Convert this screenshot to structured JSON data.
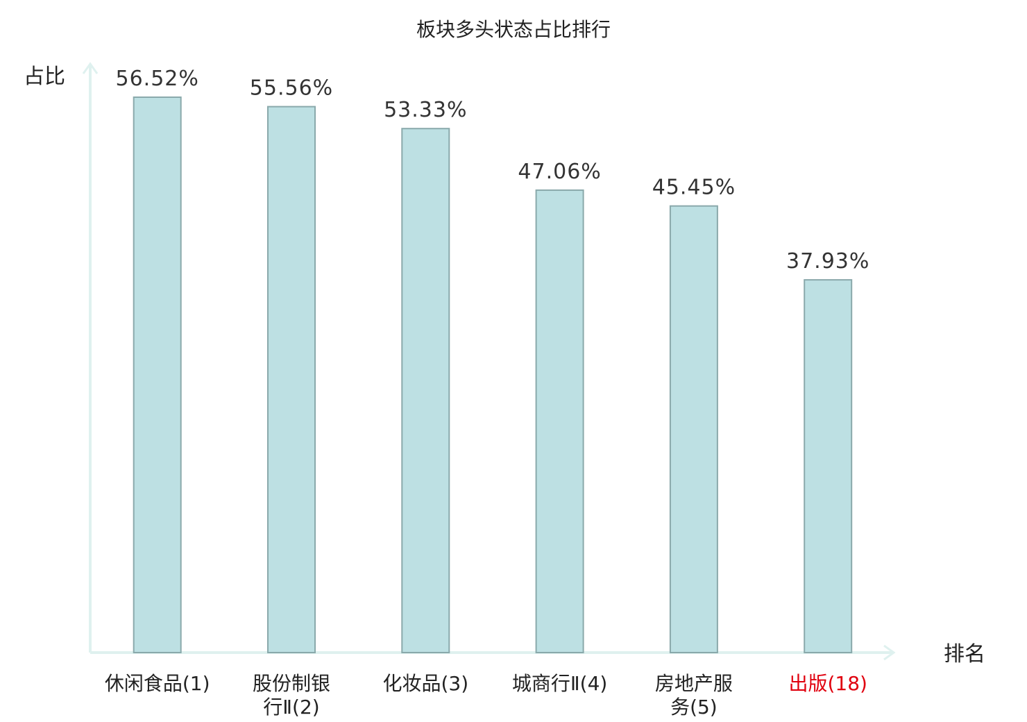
{
  "chart_data": {
    "type": "bar",
    "title": "板块多头状态占比排行",
    "ylabel": "占比",
    "xlabel": "排名",
    "categories": [
      [
        "休闲食品(1)"
      ],
      [
        "股份制银",
        "行Ⅱ(2)"
      ],
      [
        "化妆品(3)"
      ],
      [
        "城商行Ⅱ(4)"
      ],
      [
        "房地产服",
        "务(5)"
      ],
      [
        "出版(18)"
      ]
    ],
    "values": [
      56.52,
      55.56,
      53.33,
      47.06,
      45.45,
      37.93
    ],
    "value_labels": [
      "56.52%",
      "55.56%",
      "53.33%",
      "47.06%",
      "45.45%",
      "37.93%"
    ],
    "highlight_index": 5,
    "ylim": [
      0,
      60
    ],
    "grid": false,
    "colors": {
      "bar_fill": "#bde0e3",
      "bar_stroke": "#8aa9ab",
      "axis": "#dff1ef",
      "highlight_text": "#e0000e"
    }
  }
}
